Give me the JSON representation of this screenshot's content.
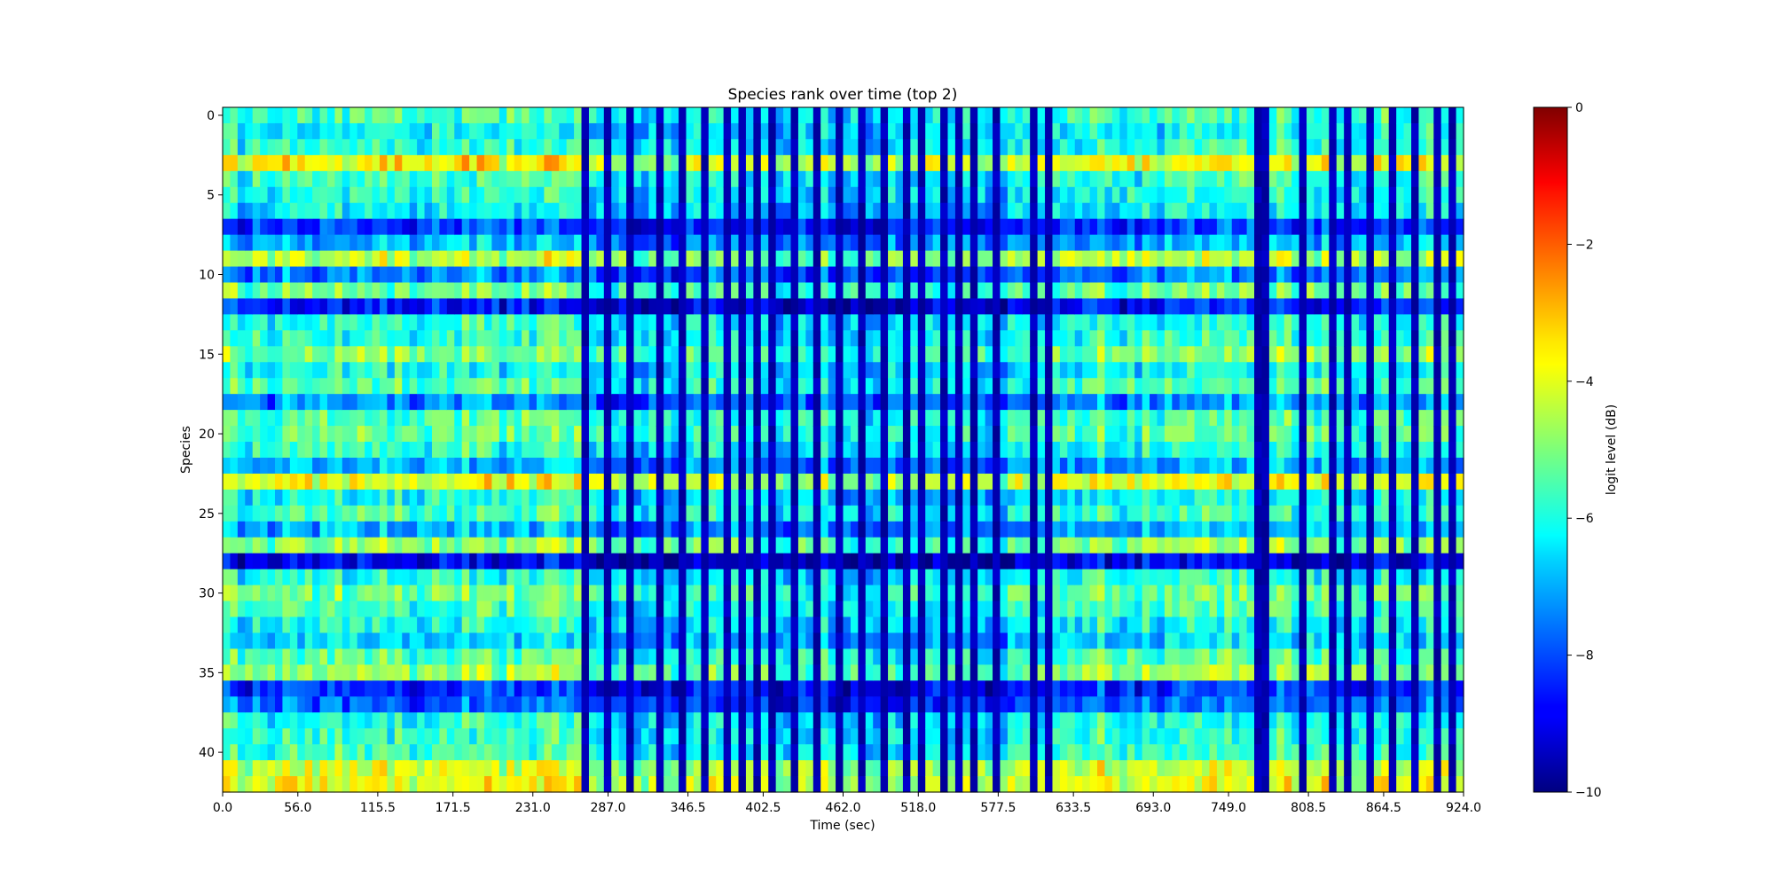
{
  "chart_data": {
    "type": "heatmap",
    "title": "Species rank over time (top 2)",
    "xlabel": "Time (sec)",
    "ylabel": "Species",
    "x_ticks": [
      "0.0",
      "56.0",
      "115.5",
      "171.5",
      "231.0",
      "287.0",
      "346.5",
      "402.5",
      "462.0",
      "518.0",
      "577.5",
      "633.5",
      "693.0",
      "749.0",
      "808.5",
      "864.5",
      "924.0"
    ],
    "xlim": [
      0,
      924
    ],
    "y_ticks": [
      "0",
      "5",
      "10",
      "15",
      "20",
      "25",
      "30",
      "35",
      "40"
    ],
    "ylim": [
      42.5,
      -0.5
    ],
    "n_species": 43,
    "n_time_bins": 166,
    "time_step": 5.6,
    "colormap": "jet",
    "colorbar": {
      "label": "logit level (dB)",
      "ticks": [
        "0",
        "−2",
        "−4",
        "−6",
        "−8",
        "−10"
      ],
      "vmin": -10,
      "vmax": 0
    },
    "row_baseline_db": [
      -5.6,
      -6.2,
      -5.9,
      -3.8,
      -5.8,
      -6.0,
      -6.3,
      -8.1,
      -6.9,
      -4.4,
      -7.5,
      -5.2,
      -8.6,
      -6.0,
      -5.9,
      -5.0,
      -6.1,
      -5.6,
      -7.4,
      -5.5,
      -5.3,
      -5.9,
      -7.1,
      -3.9,
      -6.2,
      -5.7,
      -7.0,
      -4.9,
      -9.0,
      -6.0,
      -5.2,
      -5.6,
      -6.1,
      -6.6,
      -5.5,
      -4.8,
      -8.3,
      -7.8,
      -6.0,
      -5.9,
      -5.7,
      -4.2,
      -3.9
    ],
    "dark_band_columns": [
      48,
      51,
      54,
      58,
      61,
      64,
      67,
      69,
      71,
      73,
      76,
      79,
      82,
      85,
      88,
      91,
      93,
      96,
      98,
      100,
      103,
      108,
      110,
      138,
      139,
      144,
      148,
      150,
      153,
      156,
      159,
      162,
      164
    ],
    "dark_band_db": -9.5
  }
}
